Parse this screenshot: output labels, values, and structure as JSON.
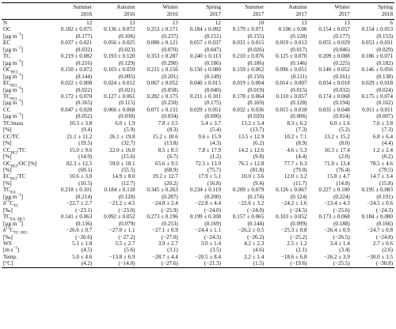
{
  "table": {
    "header": [
      [
        "Summer",
        "2016"
      ],
      [
        "Autumn",
        "2016"
      ],
      [
        "Winter",
        "2016"
      ],
      [
        "Spring",
        "2017"
      ],
      [
        "Summer",
        "2017"
      ],
      [
        "Autumn",
        "2017"
      ],
      [
        "Winter",
        "2017"
      ],
      [
        "Spring",
        "2018"
      ]
    ],
    "rows": [
      {
        "label": [
          {
            "t": "N"
          }
        ],
        "cells": [
          "12",
          "13",
          "13",
          "12",
          "10",
          "13",
          "13",
          "6"
        ]
      },
      {
        "label": [
          {
            "t": "OC"
          }
        ],
        "cells": [
          "0.182 ± 0.075",
          "0.136 ± 0.072",
          "0.253 ± 0.171",
          "0.184 ± 0.092",
          "0.179 ± 0.071",
          "0.106 ± 0.06",
          "0.154 ± 0.057",
          "0.154 ± 0.053"
        ]
      },
      {
        "label": [
          {
            "t": "[µg m"
          },
          {
            "sup": "−3"
          },
          {
            "t": "]"
          }
        ],
        "cells": [
          "(0.177)",
          "(0.106)",
          "(0.237)",
          "(0.151)",
          "(0.155)",
          "(0.128)",
          "(0.177)",
          "(0.153)"
        ]
      },
      {
        "label": [
          {
            "t": "EC"
          }
        ],
        "cells": [
          "0.037 ± 0.021",
          "0.056 ± 0.025",
          "0.080 ± 0.121",
          "0.057 ± 0.037",
          "0.031 ± 0.015",
          "0.019 ± 0.013",
          "0.055 ± 0.029",
          "0.053 ± 0.031"
        ]
      },
      {
        "label": [
          {
            "t": "[µg m"
          },
          {
            "sup": "−3"
          },
          {
            "t": "]"
          }
        ],
        "cells": [
          "(0.032)",
          "(0.023)",
          "(0.070)",
          "(0.047)",
          "(0.026)",
          "(0.017)",
          "(0.046)",
          "(0.029)"
        ]
      },
      {
        "label": [
          {
            "t": "TC"
          }
        ],
        "cells": [
          "0.219 ± 0.082",
          "0.193 ± 0.120",
          "0.353 ± 0.287",
          "0.240 ± 0.113",
          "0.210 ± 0.076",
          "0.125 ± 0.070",
          "0.209 ± 0.088",
          "0.186 ± 0.071"
        ]
      },
      {
        "label": [
          {
            "t": "[µg m"
          },
          {
            "sup": "−3"
          },
          {
            "t": "]"
          }
        ],
        "cells": [
          "(0.216)",
          "(0.129)",
          "(0.290)",
          "(0.186)",
          "(0.186)",
          "(0.146)",
          "(0.225)",
          "(0.182)"
        ]
      },
      {
        "label": [
          {
            "t": "OC"
          },
          {
            "sub": "HCl"
          }
        ],
        "cells": [
          "0.150 ± 0.072",
          "0.103 ± 0.059",
          "0.215 ± 0.156",
          "0.150 ± 0.080",
          "0.159 ± 0.062",
          "0.096 ± 0.051",
          "0.140 ± 0.052",
          "0.146 ± 0.056"
        ]
      },
      {
        "label": [
          {
            "t": "[µg m"
          },
          {
            "sup": "−3"
          },
          {
            "t": "]"
          }
        ],
        "cells": [
          "(0.144)",
          "(0.095)",
          "(0.201)",
          "(0.149)",
          "(0.150)",
          "(0.111)",
          "(0.161)",
          "(0.138)"
        ]
      },
      {
        "label": [
          {
            "t": "EC"
          },
          {
            "sub": "HCl"
          }
        ],
        "cells": [
          "0.022 ± 0.008",
          "0.024 ± 0.012",
          "0.067 ± 0.052",
          "0.040 ± 0.015",
          "0.019 ± 0.004",
          "0.014 ± 0.007",
          "0.034 ± 0.018",
          "0.029 ± 0.018"
        ]
      },
      {
        "label": [
          {
            "t": "[µg m"
          },
          {
            "sup": "−3"
          },
          {
            "t": "]"
          }
        ],
        "cells": [
          "(0.022)",
          "(0.021)",
          "(0.058)",
          "(0.040)",
          "(0.019)",
          "(0.015)",
          "(0.032)",
          "(0.024)"
        ]
      },
      {
        "label": [
          {
            "t": "TC"
          },
          {
            "sub": "HCl"
          }
        ],
        "cells": [
          "0.172 ± 0.070",
          "0.127 ± 0.061",
          "0.282 ± 0.175",
          "0.211 ± 0.101",
          "0.178 ± 0.064",
          "0.110 ± 0.057",
          "0.174 ± 0.068",
          "0.175 ± 0.074"
        ]
      },
      {
        "label": [
          {
            "t": "[µg m"
          },
          {
            "sup": "−3"
          },
          {
            "t": "]"
          }
        ],
        "cells": [
          "(0.165)",
          "(0.115)",
          "(0.250)",
          "(0.175)",
          "(0.169)",
          "(0.128)",
          "(0.194)",
          "(0.162)"
        ]
      },
      {
        "label": [
          {
            "t": "CC"
          }
        ],
        "cells": [
          "0.047 ± 0.028",
          "0.066 ± 0.068",
          "0.071 ± 0.131",
          "0.029 ± 0.051",
          "0.032 ± 0.036",
          "0.015 ± 0.018",
          "0.035 ± 0.048",
          "0.011 ± 0.011"
        ]
      },
      {
        "label": [
          {
            "t": "[µg m"
          },
          {
            "sup": "−3"
          },
          {
            "t": "]"
          }
        ],
        "cells": [
          "(0.052)",
          "(0.030)",
          "(0.034)",
          "(0.000)",
          "(0.020)",
          "(0.006)",
          "(0.014)",
          "(0.007)"
        ]
      },
      {
        "label": [
          {
            "t": "TC/mass"
          }
        ],
        "cells": [
          "10.3 ± 3.8",
          "6.0 ± 1.9",
          "7.8 ± 3.5",
          "5.4 ± 3.7",
          "13.2 ± 5.4",
          "8.3 ± 6.2",
          "6.0 ± 1.6",
          "7.6 ± 3.8"
        ]
      },
      {
        "label": [
          {
            "t": "[%]"
          }
        ],
        "cells": [
          "(9.4)",
          "(5.9)",
          "(8.3)",
          "(5.4)",
          "(13.7)",
          "(7.3)",
          "(5.2)",
          "(7.3)"
        ]
      },
      {
        "label": [
          {
            "t": "CC/TC"
          }
        ],
        "cells": [
          "21.1 ± 11.2",
          "26.1 ± 19.8",
          "15.2 ± 10.6",
          "9.6 ± 15.9",
          "13.5 ± 12.9",
          "10.2 ± 7.1",
          "13.2 ± 15.2",
          "6.8 ± 6.4"
        ]
      },
      {
        "label": [
          {
            "t": "[%]"
          }
        ],
        "cells": [
          "(19.5)",
          "(32.7)",
          "(13.8)",
          "(4.3)",
          "(6.2)",
          "(8.9)",
          "(8.0)",
          "(4.4)"
        ]
      },
      {
        "label": [
          {
            "t": "CC"
          },
          {
            "sub": "HCl"
          },
          {
            "t": "/TC"
          }
        ],
        "cells": [
          "15.0 ± 9.6",
          "22.0 ± 16.0",
          "8.5 ± 8.5",
          "7.8 ± 17.9",
          "14.2 ± 12.6",
          "4.6 ± 5.3",
          "10.3 ± 17.4",
          "1.2 ± 2.4"
        ]
      },
      {
        "label": [
          {
            "t": "[%]"
          }
        ],
        "cells": [
          "(14.9)",
          "(15.6)",
          "(6.7)",
          "(1.2)",
          "(9.8)",
          "(4.4)",
          "(2.0)",
          "(0.2)"
        ]
      },
      {
        "label": [
          {
            "t": "OC"
          },
          {
            "sub": "HCl"
          },
          {
            "t": "/OC [%]"
          }
        ],
        "cells": [
          "82.3 ± 12.5",
          "59.0 ± 18.1",
          "65.6 ± 9.5",
          "72.5 ± 13.9",
          "76.5 ± 12.8",
          "77.7 ± 6.3",
          "71.0 ± 13.4",
          "78.5 ± 4.6"
        ]
      },
      {
        "label": [
          {
            "t": "[%]"
          }
        ],
        "cells": [
          "(69.1)",
          "(55.5)",
          "(68.9)",
          "(75.7)",
          "(81.8)",
          "(79.0)",
          "(76.4)",
          "(79.5)"
        ]
      },
      {
        "label": [
          {
            "t": "EC"
          },
          {
            "sub": "HCl"
          },
          {
            "t": "/TC"
          }
        ],
        "cells": [
          "10.6 ± 3.0",
          "14.9 ± 8.0",
          "19.2 ± 12.7",
          "17.9 ± 5.1",
          "10.0 ± 3.6",
          "12.0 ± 3.2",
          "15.8 ± 4.7",
          "14.7 ± 3.4"
        ]
      },
      {
        "label": [
          {
            "t": "[%]"
          }
        ],
        "cells": [
          "(10.5)",
          "(12.7)",
          "(20.2)",
          "(16.8)",
          "(9.4)",
          "(11.7)",
          "(14.8)",
          "(15.8)"
        ]
      },
      {
        "label": [
          {
            "t": "TC"
          },
          {
            "sub": "EA"
          }
        ],
        "cells": [
          "0.218 ± 0.101",
          "0.184 ± 0.118",
          "0.345 ± 0.263",
          "0.234 ± 0.119",
          "0.209 ± 0.079",
          "0.126 ± 0.067",
          "0.227 ± 0.100",
          "0.195 ± 0.083"
        ]
      },
      {
        "label": [
          {
            "t": "[µg m"
          },
          {
            "sup": "−3"
          },
          {
            "t": "]"
          }
        ],
        "cells": [
          "(0.214)",
          "(0.120)",
          "(0.287)",
          "(0.200)",
          "(0.174)",
          "(0.124)",
          "(0.224)",
          "(0.191)"
        ]
      },
      {
        "label": [
          {
            "t": "δ"
          },
          {
            "sup": "13"
          },
          {
            "t": "C"
          },
          {
            "sub": "TC"
          }
        ],
        "cells": [
          "−22.7 ± 2.7",
          "−21.2 ± 4.5",
          "−24.8 ± 2.4",
          "−22.8 ± 4.4",
          "−22.6 ± 3.2",
          "−24.2 ± 1.6",
          "−23.4 ± 4.3",
          "−24.5 ± 0.6"
        ]
      },
      {
        "label": [
          {
            "t": "[‰]"
          }
        ],
        "cells": [
          "(−23.1)",
          "(−23.0)",
          "(−25.9)",
          "(−24.0)",
          "(−24.0)",
          "(−24.5)",
          "(−25.6)",
          "(−24.3)"
        ]
      },
      {
        "label": [
          {
            "t": "TC"
          },
          {
            "sub": "EA−HCl"
          }
        ],
        "cells": [
          "0.141 ± 0.063",
          "0.092 ± 0.052",
          "0.273 ± 0.196",
          "0.199 ± 0.108",
          "0.157 ± 0.065",
          "0.103 ± 0.052",
          "0.173 ± 0.068",
          "0.184 ± 0.080"
        ]
      },
      {
        "label": [
          {
            "t": "[µg m"
          },
          {
            "sup": "−3"
          },
          {
            "t": "]"
          }
        ],
        "cells": [
          "(0.136)",
          "(0.079)",
          "(0.253)",
          "(0.169)",
          "(0.144)",
          "(0.099)",
          "(0.188)",
          "(0.166)"
        ]
      },
      {
        "label": [
          {
            "t": "δ"
          },
          {
            "sup": "13"
          },
          {
            "t": "C"
          },
          {
            "sub": "TC−HCl"
          }
        ],
        "cells": [
          "−26.6 ± 0.7",
          "−27.0 ± 1.1",
          "−27.1 ± 0.9",
          "−24.4 ± 1.1",
          "−26.2 ± 0.5",
          "−25.3 ± 0.8",
          "−26.4 ± 0.9",
          "−24.7 ± 0.8"
        ]
      },
      {
        "label": [
          {
            "t": "[‰]"
          }
        ],
        "cells": [
          "(−26.6)",
          "(−27.2)",
          "(−27.0)",
          "(−24.3)",
          "(−26.2)",
          "(−25.2)",
          "(−26.5)",
          "(−24.8)"
        ]
      },
      {
        "label": [
          {
            "t": "WS"
          }
        ],
        "cells": [
          "5.1 ± 1.8",
          "5.5 ± 2.7",
          "3.9 ± 2.7",
          "3.0 ± 1.4",
          "4.2 ± 2.3",
          "2.5 ± 1.2",
          "3.4 ± 1.4",
          "2.7 ± 0.6"
        ]
      },
      {
        "label": [
          {
            "t": "[m s"
          },
          {
            "sup": "−1"
          },
          {
            "t": "]"
          }
        ],
        "cells": [
          "(4.5)",
          "(5.6)",
          "(3.1)",
          "(3.5)",
          "(4.6)",
          "(2.1)",
          "(3.4)",
          "(2.6)"
        ]
      },
      {
        "label": [
          {
            "t": "Temp."
          }
        ],
        "cells": [
          "5.0 ± 4.6",
          "−13.8 ± 6.9",
          "−28.7 ± 4.4",
          "−20.5 ± 8.4",
          "2.2 ± 1.4",
          "−18.6 ± 6.8",
          "−26.2 ± 3.9",
          "−30.0 ± 3.5"
        ]
      },
      {
        "label": [
          {
            "t": "[°C]"
          }
        ],
        "cells": [
          "(4.2)",
          "(−14.0)",
          "(−27.6)",
          "(−21.3)",
          "(1.5)",
          "(−19.6)",
          "(−25.5)",
          "(−30.8)"
        ]
      }
    ]
  }
}
